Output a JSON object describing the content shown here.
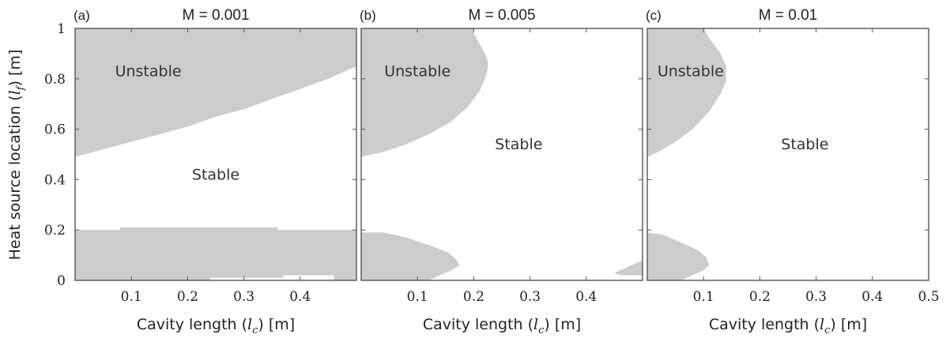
{
  "chart_data": {
    "type": "area",
    "colors": {
      "unstable": "#cccccc",
      "stable": "#ffffff",
      "frame": "#555555"
    },
    "ylabel": "Heat source location (l_f) [m]",
    "ylabel_parts": [
      "Heat source location (",
      "l",
      "f",
      ") [m]"
    ],
    "ylim": [
      0,
      1
    ],
    "yticks": [
      "0",
      "0.2",
      "0.4",
      "0.6",
      "0.8",
      "1"
    ],
    "panels": [
      {
        "letter": "(a)",
        "title": "M = 0.001",
        "xlabel_parts": [
          "Cavity length (",
          "l",
          "c",
          ") [m]"
        ],
        "xlim": [
          0,
          0.5
        ],
        "xticks": [
          "0.1",
          "0.2",
          "0.3",
          "0.4"
        ],
        "labels": [
          {
            "text": "Unstable",
            "x": 0.13,
            "y": 0.81
          },
          {
            "text": "Stable",
            "x": 0.25,
            "y": 0.4
          }
        ],
        "regions": [
          {
            "name": "unstable-upper",
            "points": [
              [
                0,
                1
              ],
              [
                0.5,
                1
              ],
              [
                0.5,
                0.85
              ],
              [
                0.45,
                0.8
              ],
              [
                0.4,
                0.76
              ],
              [
                0.35,
                0.72
              ],
              [
                0.3,
                0.68
              ],
              [
                0.25,
                0.65
              ],
              [
                0.2,
                0.61
              ],
              [
                0.15,
                0.58
              ],
              [
                0.1,
                0.55
              ],
              [
                0.05,
                0.52
              ],
              [
                0,
                0.49
              ]
            ]
          },
          {
            "name": "unstable-lower",
            "points": [
              [
                0,
                0.2
              ],
              [
                0.08,
                0.2
              ],
              [
                0.08,
                0.21
              ],
              [
                0.36,
                0.21
              ],
              [
                0.36,
                0.2
              ],
              [
                0.5,
                0.2
              ],
              [
                0.5,
                0
              ],
              [
                0.46,
                0
              ],
              [
                0.46,
                0.02
              ],
              [
                0.37,
                0.02
              ],
              [
                0.37,
                0.01
              ],
              [
                0.24,
                0.01
              ],
              [
                0.24,
                0
              ],
              [
                0,
                0
              ]
            ]
          }
        ]
      },
      {
        "letter": "(b)",
        "title": "M = 0.005",
        "xlabel_parts": [
          "Cavity length (",
          "l",
          "c",
          ") [m]"
        ],
        "xlim": [
          0,
          0.5
        ],
        "xticks": [
          "0.1",
          "0.2",
          "0.3",
          "0.4"
        ],
        "labels": [
          {
            "text": "Unstable",
            "x": 0.1,
            "y": 0.81
          },
          {
            "text": "Stable",
            "x": 0.28,
            "y": 0.52
          }
        ],
        "regions": [
          {
            "name": "unstable-upper",
            "points": [
              [
                0,
                1
              ],
              [
                0.2,
                1
              ],
              [
                0.2,
                0.98
              ],
              [
                0.21,
                0.94
              ],
              [
                0.22,
                0.9
              ],
              [
                0.225,
                0.87
              ],
              [
                0.225,
                0.84
              ],
              [
                0.22,
                0.8
              ],
              [
                0.21,
                0.75
              ],
              [
                0.19,
                0.69
              ],
              [
                0.16,
                0.63
              ],
              [
                0.12,
                0.58
              ],
              [
                0.08,
                0.54
              ],
              [
                0.04,
                0.51
              ],
              [
                0,
                0.49
              ]
            ]
          },
          {
            "name": "unstable-lower",
            "points": [
              [
                0,
                0.19
              ],
              [
                0.04,
                0.19
              ],
              [
                0.08,
                0.17
              ],
              [
                0.12,
                0.14
              ],
              [
                0.155,
                0.11
              ],
              [
                0.17,
                0.08
              ],
              [
                0.175,
                0.06
              ],
              [
                0.16,
                0.04
              ],
              [
                0.14,
                0.02
              ],
              [
                0.12,
                0
              ],
              [
                0,
                0
              ]
            ]
          },
          {
            "name": "unstable-corner",
            "points": [
              [
                0.45,
                0.03
              ],
              [
                0.47,
                0.05
              ],
              [
                0.49,
                0.07
              ],
              [
                0.5,
                0.08
              ],
              [
                0.5,
                0.02
              ],
              [
                0.46,
                0.02
              ],
              [
                0.45,
                0.03
              ]
            ]
          }
        ]
      },
      {
        "letter": "(c)",
        "title": "M = 0.01",
        "xlabel_parts": [
          "Cavity length (",
          "l",
          "c",
          ") [m]"
        ],
        "xlim": [
          0,
          0.5
        ],
        "xticks": [
          "0.1",
          "0.2",
          "0.3",
          "0.4",
          "0.5"
        ],
        "labels": [
          {
            "text": "Unstable",
            "x": 0.077,
            "y": 0.81
          },
          {
            "text": "Stable",
            "x": 0.28,
            "y": 0.52
          }
        ],
        "regions": [
          {
            "name": "unstable-upper",
            "points": [
              [
                0,
                1
              ],
              [
                0.1,
                1
              ],
              [
                0.11,
                0.96
              ],
              [
                0.13,
                0.9
              ],
              [
                0.14,
                0.85
              ],
              [
                0.14,
                0.79
              ],
              [
                0.13,
                0.74
              ],
              [
                0.11,
                0.67
              ],
              [
                0.08,
                0.6
              ],
              [
                0.05,
                0.55
              ],
              [
                0.02,
                0.51
              ],
              [
                0,
                0.49
              ]
            ]
          },
          {
            "name": "unstable-lower",
            "points": [
              [
                0,
                0.19
              ],
              [
                0.03,
                0.18
              ],
              [
                0.06,
                0.15
              ],
              [
                0.09,
                0.12
              ],
              [
                0.105,
                0.09
              ],
              [
                0.11,
                0.06
              ],
              [
                0.1,
                0.04
              ],
              [
                0.08,
                0.02
              ],
              [
                0.06,
                0
              ],
              [
                0,
                0
              ]
            ]
          }
        ]
      }
    ]
  }
}
